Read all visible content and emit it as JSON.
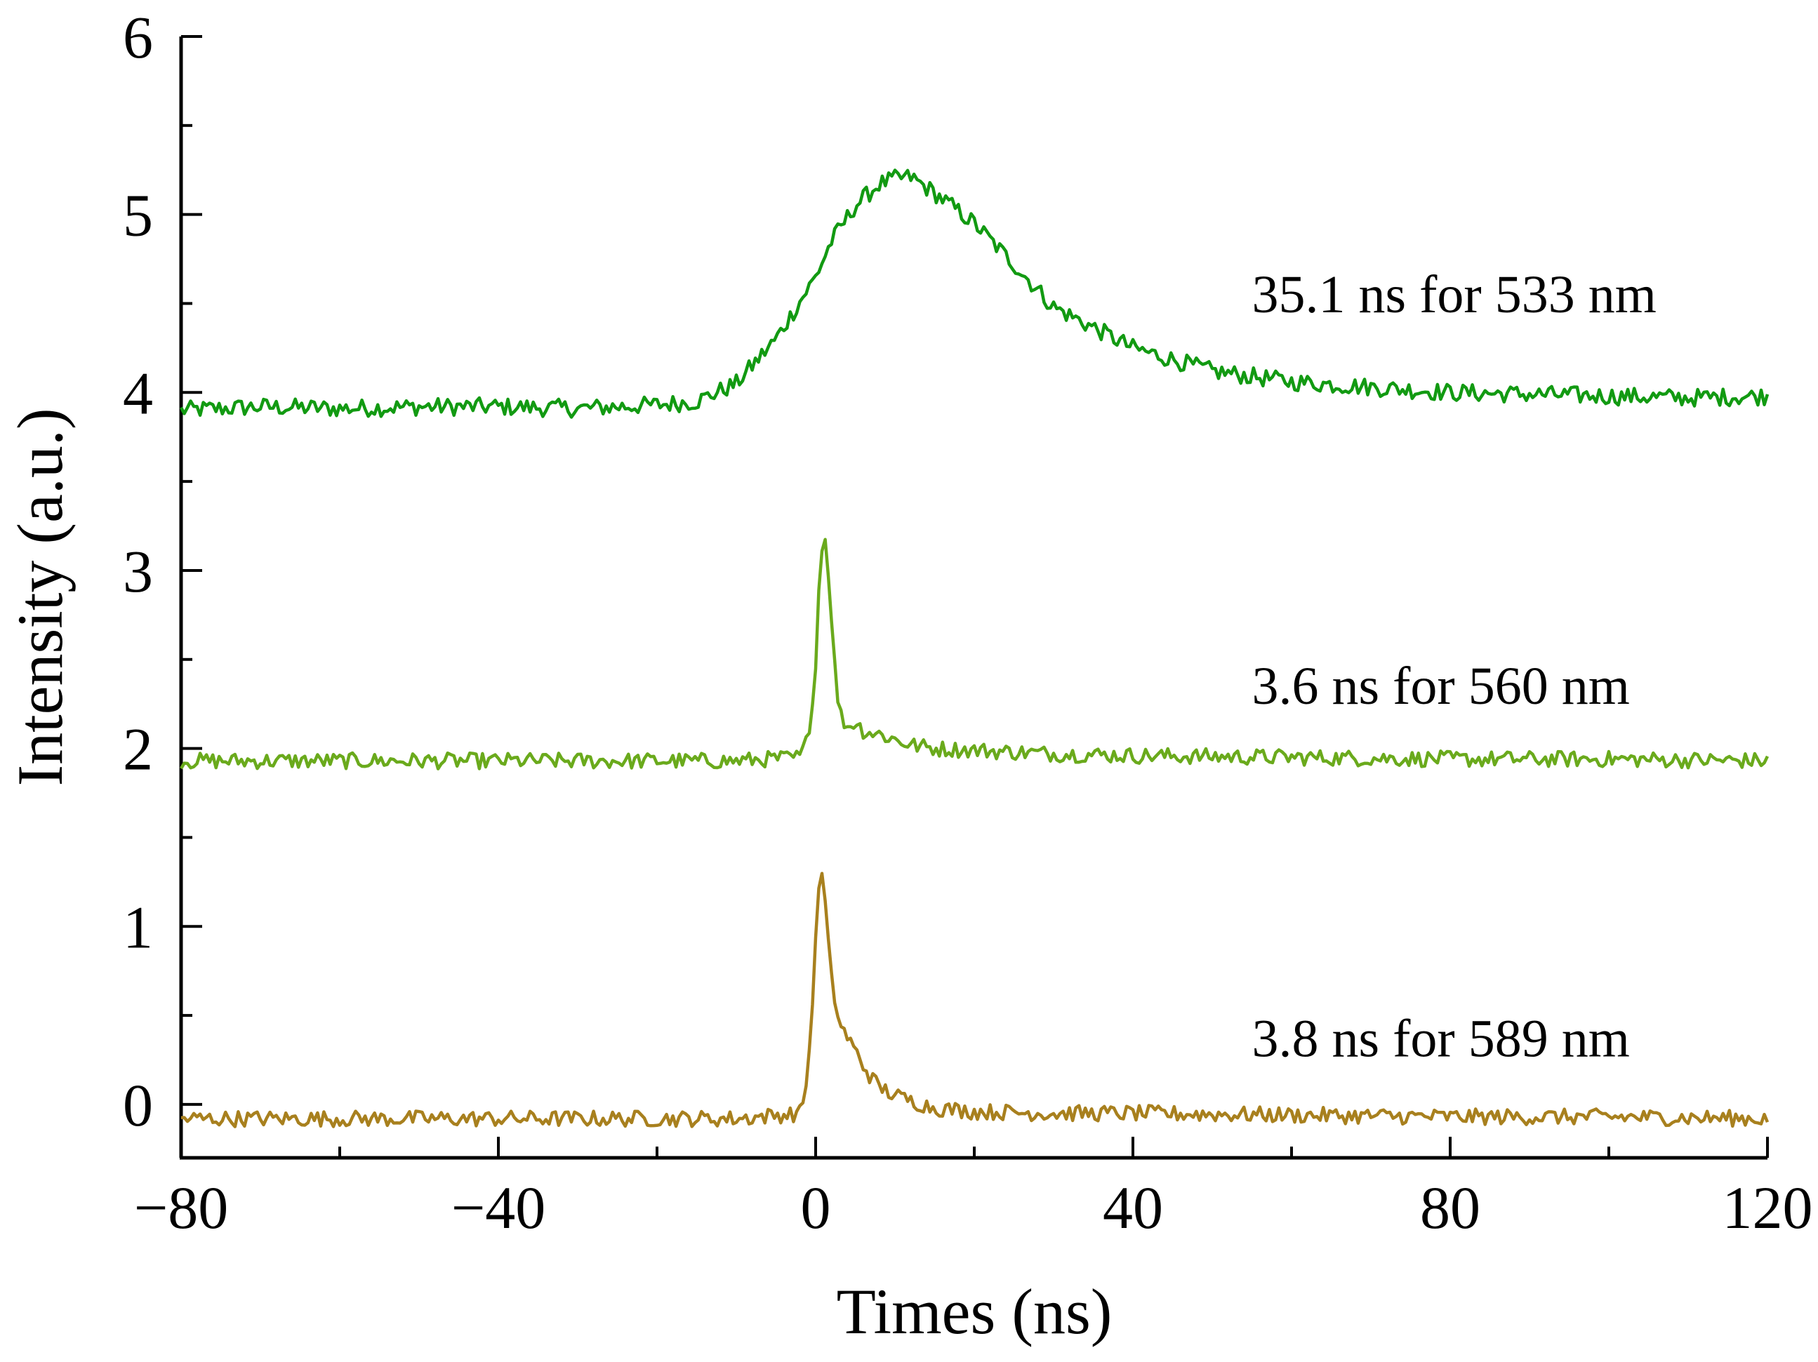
{
  "chart_data": {
    "type": "line",
    "title": "",
    "xlabel": "Times (ns)",
    "ylabel": "Intensity (a.u.)",
    "xlim": [
      -80,
      120
    ],
    "ylim": [
      -0.3,
      6
    ],
    "xticks": [
      -80,
      -40,
      0,
      40,
      80,
      120
    ],
    "xtick_labels": [
      "−80",
      "−40",
      "0",
      "40",
      "80",
      "120"
    ],
    "yticks": [
      0,
      1,
      2,
      3,
      4,
      5,
      6
    ],
    "ytick_labels": [
      "0",
      "1",
      "2",
      "3",
      "4",
      "5",
      "6"
    ],
    "grid": false,
    "series": [
      {
        "name": "533 nm",
        "label": "35.1 ns for 533 nm",
        "color": "#129a12",
        "baseline": 3.9,
        "peak_x": 10,
        "peak_y": 5.22,
        "lifetime_ns": 35.1,
        "label_x": 55,
        "label_y": 4.45,
        "x": [
          -80,
          -70,
          -60,
          -50,
          -40,
          -30,
          -20,
          -15,
          -10,
          -5,
          0,
          2,
          5,
          8,
          10,
          12,
          15,
          20,
          25,
          30,
          40,
          50,
          60,
          70,
          80,
          90,
          100,
          110,
          120
        ],
        "y": [
          3.9,
          3.92,
          3.91,
          3.92,
          3.92,
          3.91,
          3.93,
          3.95,
          4.05,
          4.3,
          4.65,
          4.85,
          5.05,
          5.17,
          5.2,
          5.21,
          5.12,
          4.95,
          4.72,
          4.48,
          4.25,
          4.12,
          4.06,
          4.03,
          4.0,
          3.99,
          3.98,
          3.97,
          3.98
        ]
      },
      {
        "name": "560 nm",
        "label": "3.6 ns for 560 nm",
        "color": "#6aaa1c",
        "baseline": 1.93,
        "peak_x": 1,
        "peak_y": 3.25,
        "lifetime_ns": 3.6,
        "label_x": 55,
        "label_y": 2.25,
        "x": [
          -80,
          -40,
          -10,
          -2,
          -1,
          0,
          0.5,
          1,
          1.5,
          2,
          2.5,
          3,
          4,
          5,
          6,
          8,
          10,
          12,
          15,
          20,
          30,
          40,
          60,
          80,
          100,
          120
        ],
        "y": [
          1.93,
          1.93,
          1.93,
          1.95,
          2.05,
          2.45,
          3.0,
          3.25,
          3.05,
          2.75,
          2.4,
          2.2,
          2.12,
          2.15,
          2.1,
          2.08,
          2.05,
          2.02,
          2.0,
          1.99,
          1.97,
          1.96,
          1.95,
          1.94,
          1.94,
          1.93
        ]
      },
      {
        "name": "589 nm",
        "label": "3.8 ns for 589 nm",
        "color": "#a8801e",
        "baseline": -0.08,
        "peak_x": 0.5,
        "peak_y": 1.32,
        "lifetime_ns": 3.8,
        "label_x": 55,
        "label_y": 0.27,
        "x": [
          -80,
          -40,
          -10,
          -2,
          -1,
          0,
          0.5,
          1,
          1.5,
          2,
          3,
          4,
          5,
          6,
          7,
          8,
          10,
          12,
          15,
          20,
          30,
          40,
          60,
          80,
          100,
          120
        ],
        "y": [
          -0.08,
          -0.08,
          -0.08,
          -0.05,
          0.15,
          0.9,
          1.32,
          1.25,
          0.95,
          0.7,
          0.45,
          0.38,
          0.3,
          0.22,
          0.15,
          0.1,
          0.05,
          0.02,
          -0.02,
          -0.04,
          -0.05,
          -0.05,
          -0.06,
          -0.07,
          -0.07,
          -0.08
        ]
      }
    ]
  }
}
